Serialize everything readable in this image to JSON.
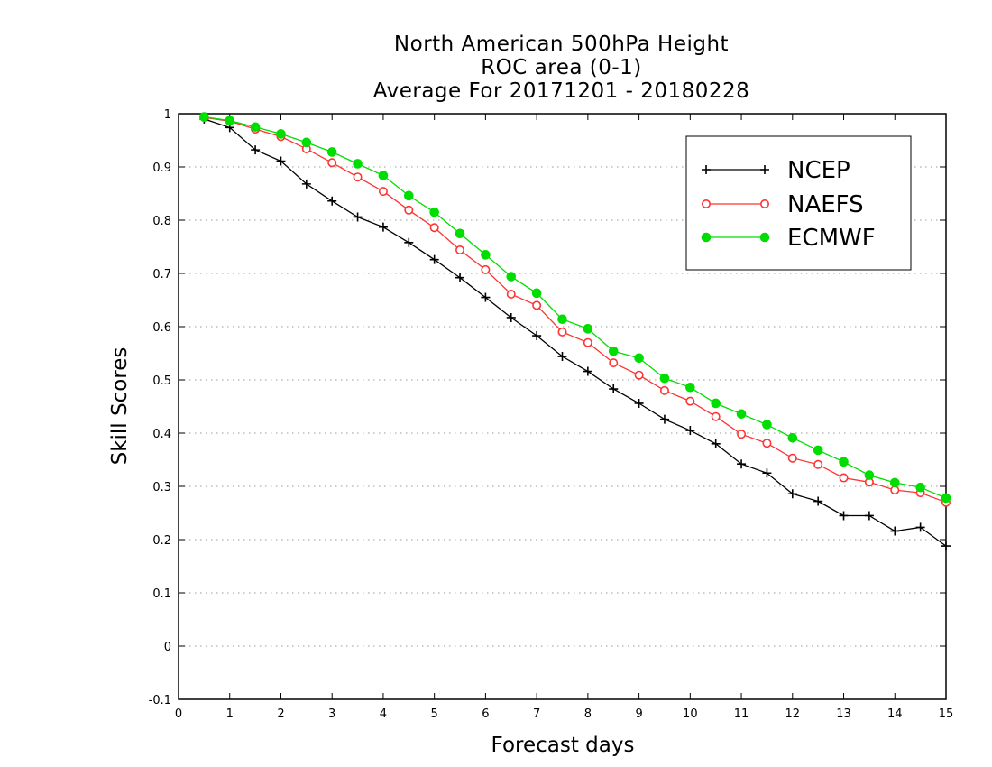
{
  "chart_data": {
    "type": "line",
    "title_lines": [
      "North American 500hPa Height",
      "ROC area (0-1)",
      "Average For 20171201 - 20180228"
    ],
    "xlabel": "Forecast days",
    "ylabel": "Skill Scores",
    "xlim": [
      0,
      15
    ],
    "ylim": [
      -0.1,
      1
    ],
    "x_ticks": [
      "0",
      "1",
      "2",
      "3",
      "4",
      "5",
      "6",
      "7",
      "8",
      "9",
      "10",
      "11",
      "12",
      "13",
      "14",
      "15"
    ],
    "y_ticks": [
      "-0.1",
      "0",
      "0.1",
      "0.2",
      "0.3",
      "0.4",
      "0.5",
      "0.6",
      "0.7",
      "0.8",
      "0.9",
      "1"
    ],
    "grid": "dotted horizontal",
    "legend_position": "top-right",
    "x": [
      0.5,
      1,
      1.5,
      2,
      2.5,
      3,
      3.5,
      4,
      4.5,
      5,
      5.5,
      6,
      6.5,
      7,
      7.5,
      8,
      8.5,
      9,
      9.5,
      10,
      10.5,
      11,
      11.5,
      12,
      12.5,
      13,
      13.5,
      14,
      14.5,
      15
    ],
    "series": [
      {
        "name": "NCEP",
        "color": "#000000",
        "marker": "plus",
        "values": [
          0.99,
          0.974,
          0.932,
          0.911,
          0.868,
          0.836,
          0.806,
          0.787,
          0.758,
          0.726,
          0.692,
          0.655,
          0.617,
          0.583,
          0.544,
          0.516,
          0.483,
          0.456,
          0.426,
          0.405,
          0.38,
          0.342,
          0.325,
          0.286,
          0.272,
          0.245,
          0.245,
          0.216,
          0.223,
          0.188
        ]
      },
      {
        "name": "NAEFS",
        "color": "#ff3333",
        "marker": "open-circle",
        "values": [
          0.993,
          0.986,
          0.971,
          0.957,
          0.934,
          0.908,
          0.881,
          0.854,
          0.819,
          0.786,
          0.744,
          0.707,
          0.661,
          0.64,
          0.59,
          0.57,
          0.532,
          0.509,
          0.48,
          0.46,
          0.431,
          0.398,
          0.381,
          0.353,
          0.341,
          0.316,
          0.308,
          0.293,
          0.288,
          0.27
        ]
      },
      {
        "name": "ECMWF",
        "color": "#00dd00",
        "marker": "filled-circle",
        "values": [
          0.994,
          0.987,
          0.975,
          0.962,
          0.946,
          0.928,
          0.906,
          0.884,
          0.846,
          0.815,
          0.775,
          0.735,
          0.694,
          0.663,
          0.614,
          0.596,
          0.554,
          0.541,
          0.503,
          0.486,
          0.456,
          0.436,
          0.416,
          0.391,
          0.368,
          0.346,
          0.321,
          0.307,
          0.298,
          0.278
        ]
      }
    ]
  }
}
